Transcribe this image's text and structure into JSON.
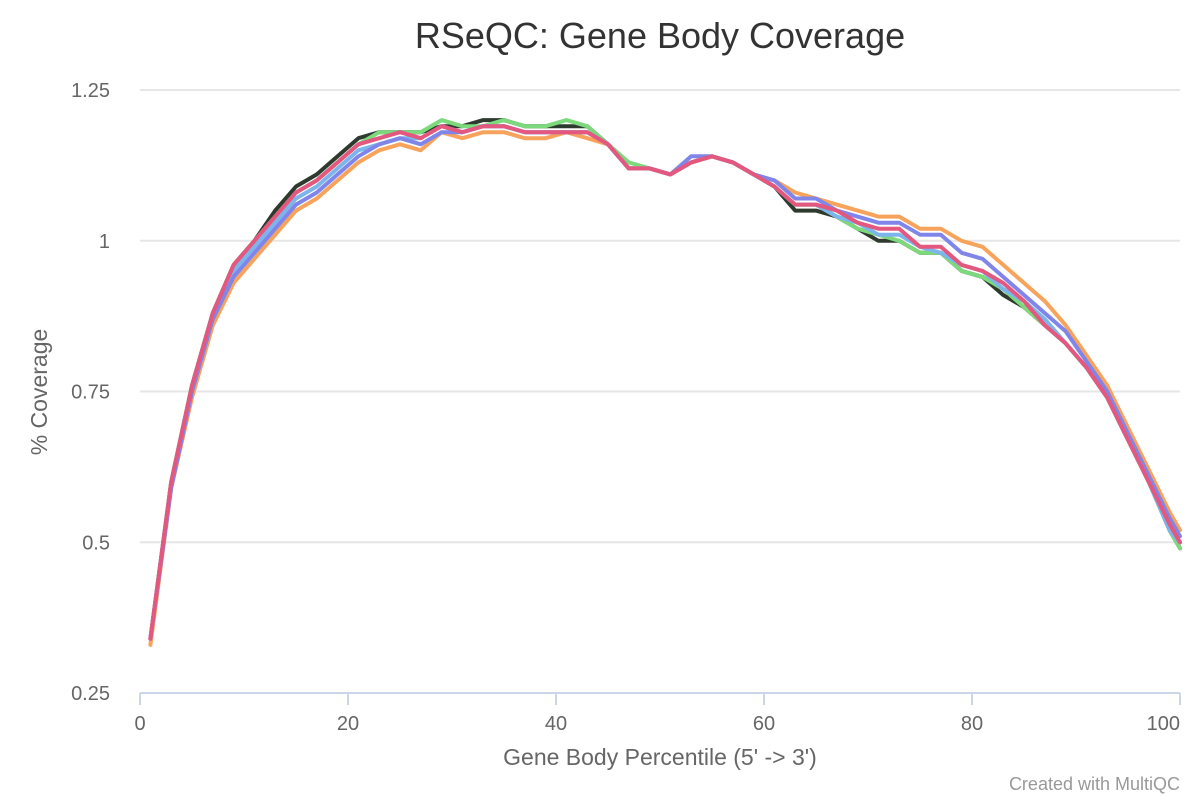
{
  "chart_data": {
    "type": "line",
    "title": "RSeQC: Gene Body Coverage",
    "xlabel": "Gene Body Percentile (5' -> 3')",
    "ylabel": "% Coverage",
    "xlim": [
      0,
      100
    ],
    "ylim": [
      0.25,
      1.25
    ],
    "xticks": [
      "0",
      "20",
      "40",
      "60",
      "80",
      "100"
    ],
    "yticks": [
      "0.25",
      "0.5",
      "0.75",
      "1",
      "1.25"
    ],
    "grid": true,
    "legend": "none",
    "credit": "Created with MultiQC",
    "x": [
      1,
      3,
      5,
      7,
      9,
      11,
      13,
      15,
      17,
      19,
      21,
      23,
      25,
      27,
      29,
      31,
      33,
      35,
      37,
      39,
      41,
      43,
      45,
      47,
      49,
      51,
      53,
      55,
      57,
      59,
      61,
      63,
      65,
      67,
      69,
      71,
      73,
      75,
      77,
      79,
      81,
      83,
      85,
      87,
      89,
      91,
      93,
      95,
      97,
      99,
      100
    ],
    "series": [
      {
        "color": "#2f3a2f",
        "values": [
          0.34,
          0.6,
          0.76,
          0.88,
          0.96,
          1.0,
          1.05,
          1.09,
          1.11,
          1.14,
          1.17,
          1.18,
          1.18,
          1.18,
          1.19,
          1.19,
          1.2,
          1.2,
          1.19,
          1.19,
          1.19,
          1.19,
          1.16,
          1.12,
          1.12,
          1.11,
          1.13,
          1.14,
          1.13,
          1.11,
          1.09,
          1.05,
          1.05,
          1.04,
          1.02,
          1.0,
          1.0,
          0.98,
          0.98,
          0.95,
          0.94,
          0.91,
          0.89,
          0.86,
          0.83,
          0.79,
          0.74,
          0.67,
          0.6,
          0.52,
          0.49
        ]
      },
      {
        "color": "#7cd97c",
        "values": [
          0.34,
          0.6,
          0.76,
          0.88,
          0.96,
          1.0,
          1.04,
          1.08,
          1.1,
          1.13,
          1.16,
          1.18,
          1.18,
          1.18,
          1.2,
          1.19,
          1.19,
          1.2,
          1.19,
          1.19,
          1.2,
          1.19,
          1.16,
          1.13,
          1.12,
          1.11,
          1.13,
          1.14,
          1.13,
          1.11,
          1.09,
          1.06,
          1.06,
          1.04,
          1.02,
          1.01,
          1.0,
          0.98,
          0.98,
          0.95,
          0.94,
          0.92,
          0.89,
          0.86,
          0.83,
          0.79,
          0.74,
          0.67,
          0.6,
          0.52,
          0.49
        ]
      },
      {
        "color": "#7cb5ec",
        "values": [
          0.34,
          0.6,
          0.76,
          0.88,
          0.95,
          0.99,
          1.03,
          1.07,
          1.09,
          1.12,
          1.15,
          1.16,
          1.17,
          1.17,
          1.19,
          1.18,
          1.19,
          1.19,
          1.18,
          1.18,
          1.18,
          1.18,
          1.16,
          1.12,
          1.12,
          1.11,
          1.13,
          1.14,
          1.13,
          1.11,
          1.09,
          1.06,
          1.06,
          1.04,
          1.03,
          1.01,
          1.01,
          0.99,
          0.98,
          0.96,
          0.95,
          0.92,
          0.9,
          0.87,
          0.83,
          0.79,
          0.74,
          0.67,
          0.6,
          0.52,
          0.5
        ]
      },
      {
        "color": "#f7a35c",
        "values": [
          0.33,
          0.59,
          0.74,
          0.86,
          0.93,
          0.97,
          1.01,
          1.05,
          1.07,
          1.1,
          1.13,
          1.15,
          1.16,
          1.15,
          1.18,
          1.17,
          1.18,
          1.18,
          1.17,
          1.17,
          1.18,
          1.17,
          1.16,
          1.12,
          1.12,
          1.11,
          1.13,
          1.14,
          1.13,
          1.11,
          1.1,
          1.08,
          1.07,
          1.06,
          1.05,
          1.04,
          1.04,
          1.02,
          1.02,
          1.0,
          0.99,
          0.96,
          0.93,
          0.9,
          0.86,
          0.81,
          0.76,
          0.69,
          0.62,
          0.55,
          0.52
        ]
      },
      {
        "color": "#8085e9",
        "values": [
          0.34,
          0.59,
          0.75,
          0.87,
          0.94,
          0.98,
          1.02,
          1.06,
          1.08,
          1.11,
          1.14,
          1.16,
          1.17,
          1.16,
          1.18,
          1.18,
          1.19,
          1.19,
          1.18,
          1.18,
          1.18,
          1.18,
          1.16,
          1.12,
          1.12,
          1.11,
          1.14,
          1.14,
          1.13,
          1.11,
          1.1,
          1.07,
          1.07,
          1.05,
          1.04,
          1.03,
          1.03,
          1.01,
          1.01,
          0.98,
          0.97,
          0.94,
          0.91,
          0.88,
          0.85,
          0.8,
          0.75,
          0.68,
          0.61,
          0.54,
          0.51
        ]
      },
      {
        "color": "#e4577e",
        "values": [
          0.34,
          0.6,
          0.76,
          0.88,
          0.96,
          1.0,
          1.04,
          1.08,
          1.1,
          1.13,
          1.16,
          1.17,
          1.18,
          1.17,
          1.19,
          1.18,
          1.19,
          1.19,
          1.18,
          1.18,
          1.18,
          1.18,
          1.16,
          1.12,
          1.12,
          1.11,
          1.13,
          1.14,
          1.13,
          1.11,
          1.09,
          1.06,
          1.06,
          1.05,
          1.03,
          1.02,
          1.02,
          0.99,
          0.99,
          0.96,
          0.95,
          0.93,
          0.9,
          0.86,
          0.83,
          0.79,
          0.74,
          0.67,
          0.6,
          0.53,
          0.5
        ]
      }
    ]
  }
}
